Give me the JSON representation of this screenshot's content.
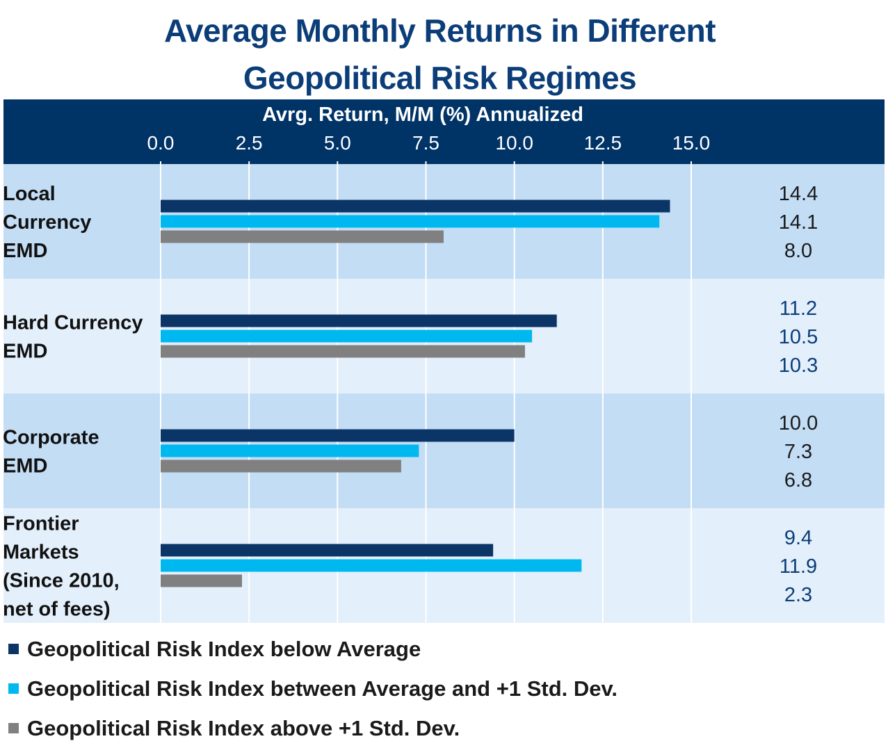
{
  "title_lines": [
    "Average Monthly Returns in Different",
    "Geopolitical Risk Regimes"
  ],
  "chart_data": {
    "type": "bar",
    "orientation": "horizontal",
    "title": "Average Monthly Returns in Different Geopolitical Risk Regimes",
    "xlabel": "Avrg. Return, M/M (%) Annualized",
    "xlim": [
      0,
      15
    ],
    "xticks": [
      "0.0",
      "2.5",
      "5.0",
      "7.5",
      "10.0",
      "12.5",
      "15.0"
    ],
    "grid": true,
    "categories": [
      [
        "Local",
        "Currency",
        "EMD"
      ],
      [
        "Hard Currency",
        "EMD"
      ],
      [
        "Corporate",
        "EMD"
      ],
      [
        "Frontier",
        "Markets",
        "(Since 2010,",
        "net of fees)"
      ]
    ],
    "series": [
      {
        "name": "Geopolitical Risk Index below Average",
        "color": "#0b3566",
        "values": [
          14.4,
          11.2,
          10.0,
          9.4
        ],
        "labels": [
          "14.4",
          "11.2",
          "10.0",
          "9.4"
        ]
      },
      {
        "name": "Geopolitical Risk Index between Average and +1 Std. Dev.",
        "color": "#00b8f0",
        "values": [
          14.1,
          10.5,
          7.3,
          11.9
        ],
        "labels": [
          "14.1",
          "10.5",
          "7.3",
          "11.9"
        ]
      },
      {
        "name": "Geopolitical Risk Index above +1 Std. Dev.",
        "color": "#808080",
        "values": [
          8.0,
          10.3,
          6.8,
          2.3
        ],
        "labels": [
          "8.0",
          "10.3",
          "6.8",
          "2.3"
        ]
      }
    ],
    "colors": {
      "header_bg": "#003366",
      "row_dark": "#c3ddf5",
      "row_light": "#e3effb",
      "value_text_dark": "#1a1a1a",
      "value_text_blue": "#0b3d78"
    }
  }
}
